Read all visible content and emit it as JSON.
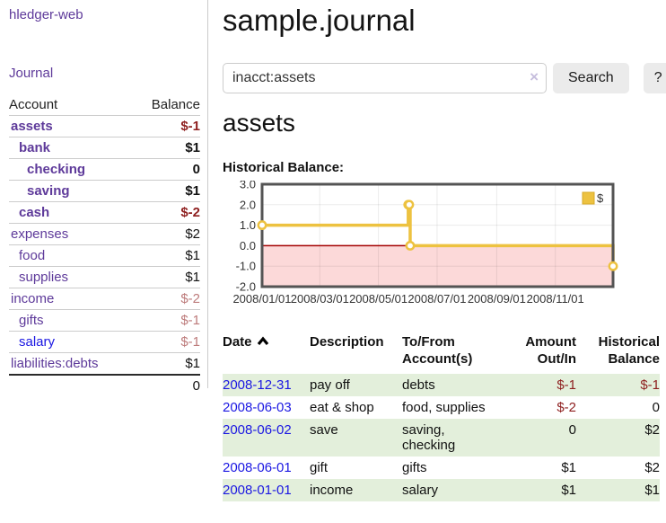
{
  "app": {
    "brand": "hledger-web",
    "nav_journal": "Journal"
  },
  "sidebar": {
    "headers": {
      "account": "Account",
      "balance": "Balance"
    },
    "accounts": [
      {
        "name": "assets",
        "balance": "$-1",
        "depth": 1,
        "current": true,
        "neg": "strong",
        "link_style": "purple"
      },
      {
        "name": "bank",
        "balance": "$1",
        "depth": 2,
        "current": true,
        "neg": "none",
        "link_style": "purple"
      },
      {
        "name": "checking",
        "balance": "0",
        "depth": 3,
        "current": true,
        "neg": "none",
        "link_style": "purple"
      },
      {
        "name": "saving",
        "balance": "$1",
        "depth": 3,
        "current": true,
        "neg": "none",
        "link_style": "purple"
      },
      {
        "name": "cash",
        "balance": "$-2",
        "depth": 2,
        "current": true,
        "neg": "strong",
        "link_style": "purple"
      },
      {
        "name": "expenses",
        "balance": "$2",
        "depth": 1,
        "current": false,
        "neg": "none",
        "link_style": "purple"
      },
      {
        "name": "food",
        "balance": "$1",
        "depth": 2,
        "current": false,
        "neg": "none",
        "link_style": "purple"
      },
      {
        "name": "supplies",
        "balance": "$1",
        "depth": 2,
        "current": false,
        "neg": "none",
        "link_style": "purple"
      },
      {
        "name": "income",
        "balance": "$-2",
        "depth": 1,
        "current": false,
        "neg": "soft",
        "link_style": "purple"
      },
      {
        "name": "gifts",
        "balance": "$-1",
        "depth": 2,
        "current": false,
        "neg": "soft",
        "link_style": "purple"
      },
      {
        "name": "salary",
        "balance": "$-1",
        "depth": 2,
        "current": false,
        "neg": "soft",
        "link_style": "blue"
      },
      {
        "name": "liabilities:debts",
        "balance": "$1",
        "depth": 1,
        "current": false,
        "neg": "none",
        "link_style": "purple"
      }
    ],
    "total": "0"
  },
  "main": {
    "title": "sample.journal",
    "search": {
      "value": "inacct:assets",
      "clear_label": "×",
      "button_label": "Search",
      "help_label": "?"
    },
    "account_heading": "assets",
    "chart_label": "Historical Balance:",
    "register": {
      "headers": {
        "date": "Date",
        "description": "Description",
        "account": "To/From Account(s)",
        "amount": "Amount Out/In",
        "balance": "Historical Balance"
      },
      "rows": [
        {
          "date": "2008-12-31",
          "description": "pay off",
          "account": "debts",
          "amount": "$-1",
          "amount_neg": true,
          "balance": "$-1",
          "balance_neg": true
        },
        {
          "date": "2008-06-03",
          "description": "eat & shop",
          "account": "food, supplies",
          "amount": "$-2",
          "amount_neg": true,
          "balance": "0",
          "balance_neg": false
        },
        {
          "date": "2008-06-02",
          "description": "save",
          "account": "saving,\nchecking",
          "amount": "0",
          "amount_neg": false,
          "balance": "$2",
          "balance_neg": false
        },
        {
          "date": "2008-06-01",
          "description": "gift",
          "account": "gifts",
          "amount": "$1",
          "amount_neg": false,
          "balance": "$2",
          "balance_neg": false
        },
        {
          "date": "2008-01-01",
          "description": "income",
          "account": "salary",
          "amount": "$1",
          "amount_neg": false,
          "balance": "$1",
          "balance_neg": false
        }
      ]
    }
  },
  "chart_data": {
    "type": "line",
    "title": "Historical Balance",
    "steps": true,
    "series": [
      {
        "name": "$",
        "color": "#edc240",
        "points": [
          [
            "2008-01-01",
            1
          ],
          [
            "2008-06-01",
            2
          ],
          [
            "2008-06-02",
            2
          ],
          [
            "2008-06-03",
            0
          ],
          [
            "2008-12-31",
            -1
          ]
        ]
      }
    ],
    "x_range": [
      "2008-01-01",
      "2008-12-31"
    ],
    "x_tick_labels": [
      "2008/01/01",
      "2008/03/01",
      "2008/05/01",
      "2008/07/01",
      "2008/09/01",
      "2008/11/01"
    ],
    "ylim": [
      -2,
      3
    ],
    "y_tick_labels": [
      "3.0",
      "2.0",
      "1.0",
      "0.0",
      "-1.0",
      "-2.0"
    ],
    "legend": {
      "label": "$",
      "position": "top-right"
    },
    "grid": true,
    "negative_region_fill": "#fcd9d9",
    "zero_line_color": "#a40000",
    "border_color": "#545454"
  },
  "colors": {
    "link_purple": "#5e3a9a",
    "link_blue": "#1b17e2",
    "negative_strong": "#8e1f1f",
    "negative_soft": "#bd7b7b",
    "row_green": "#e3efdb",
    "series_gold": "#edc240"
  }
}
